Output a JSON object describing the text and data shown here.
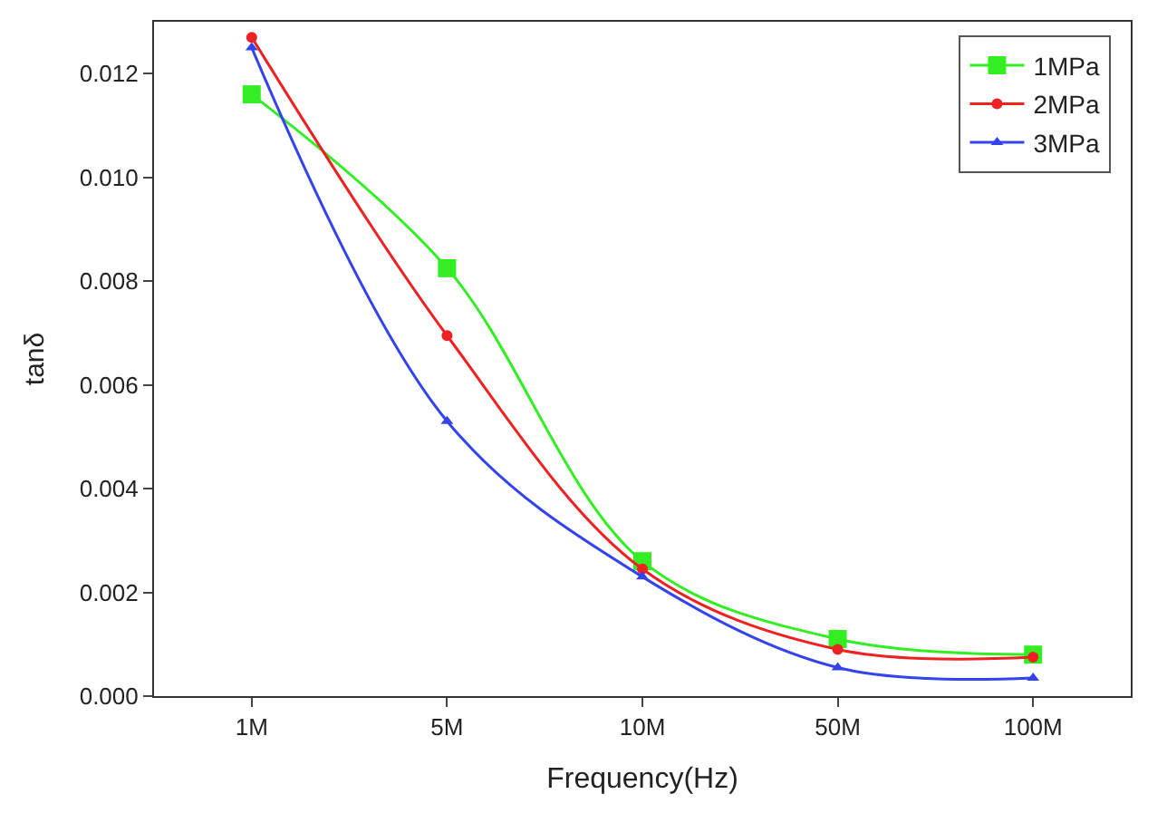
{
  "chart_data": {
    "type": "line",
    "xlabel": "Frequency(Hz)",
    "ylabel": "tanδ",
    "categories": [
      "1M",
      "5M",
      "10M",
      "50M",
      "100M"
    ],
    "series": [
      {
        "name": "1MPa",
        "color": "#33ee22",
        "marker": "square",
        "values": [
          0.0116,
          0.00825,
          0.0026,
          0.0011,
          0.0008
        ]
      },
      {
        "name": "2MPa",
        "color": "#ee2222",
        "marker": "circle",
        "values": [
          0.0127,
          0.00695,
          0.00245,
          0.0009,
          0.00075
        ]
      },
      {
        "name": "3MPa",
        "color": "#3344ee",
        "marker": "triangle",
        "values": [
          0.0125,
          0.0053,
          0.0023,
          0.00055,
          0.00035
        ]
      }
    ],
    "ylim": [
      0,
      0.013
    ],
    "yticks": [
      {
        "value": 0,
        "label": "0.000"
      },
      {
        "value": 0.002,
        "label": "0.002"
      },
      {
        "value": 0.004,
        "label": "0.004"
      },
      {
        "value": 0.006,
        "label": "0.006"
      },
      {
        "value": 0.008,
        "label": "0.008"
      },
      {
        "value": 0.01,
        "label": "0.010"
      },
      {
        "value": 0.012,
        "label": "0.012"
      }
    ],
    "legend": "top right"
  }
}
